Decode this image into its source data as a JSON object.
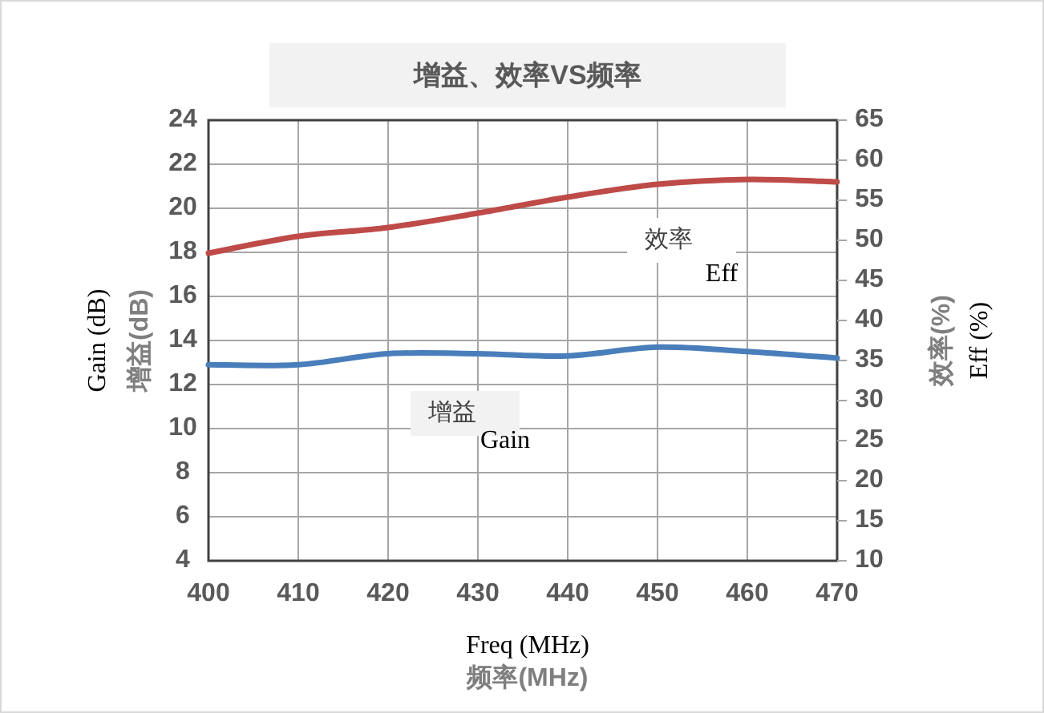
{
  "chart_data": {
    "type": "line",
    "title": "增益、效率VS频率",
    "xlabel": "频率(MHz)",
    "ylabel": "增益(dB)",
    "y2label": "效率(%)",
    "x": [
      400,
      410,
      420,
      430,
      440,
      450,
      460,
      470
    ],
    "series": [
      {
        "name": "增益",
        "color": "#4a7ebb",
        "values": [
          12.9,
          12.9,
          13.4,
          13.4,
          13.3,
          13.7,
          13.5,
          13.2
        ]
      },
      {
        "name": "效率",
        "color": "#be4b48",
        "axis": "y2",
        "values": [
          48.4,
          50.5,
          51.6,
          53.4,
          55.4,
          57,
          57.6,
          57.3
        ]
      }
    ],
    "xlim": [
      400,
      470
    ],
    "xticks": [
      400,
      410,
      420,
      430,
      440,
      450,
      460,
      470
    ],
    "ylim": [
      4,
      24
    ],
    "yticks": [
      4,
      6,
      8,
      10,
      12,
      14,
      16,
      18,
      20,
      22,
      24
    ],
    "y2lim": [
      10,
      65
    ],
    "y2ticks": [
      10,
      15,
      20,
      25,
      30,
      35,
      40,
      45,
      50,
      55,
      60,
      65
    ],
    "annotations": [
      "Freq (MHz)",
      "Gain (dB)",
      "Eff (%)",
      "Gain",
      "Eff"
    ],
    "grid": true,
    "marker": "none",
    "line_style": "solid"
  }
}
